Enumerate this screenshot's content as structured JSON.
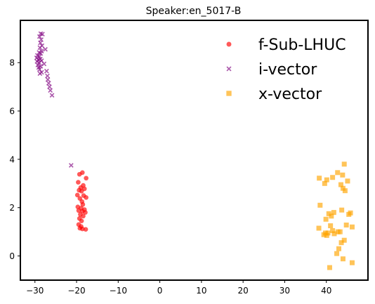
{
  "chart_data": {
    "type": "scatter",
    "title": "Speaker:en_5017-B",
    "xlabel": "",
    "ylabel": "",
    "xlim": [
      -33.5,
      50
    ],
    "ylim": [
      -1,
      9.75
    ],
    "xticks": [
      -30,
      -20,
      -10,
      0,
      10,
      20,
      30,
      40
    ],
    "yticks": [
      0,
      2,
      4,
      6,
      8
    ],
    "grid": false,
    "legend_position": "top-right",
    "series": [
      {
        "name": "f-Sub-LHUC",
        "marker": "circle",
        "color": "#ff0000",
        "points": [
          [
            -18.6,
            3.45
          ],
          [
            -19.3,
            3.38
          ],
          [
            -17.7,
            3.22
          ],
          [
            -19.6,
            3.05
          ],
          [
            -18.4,
            2.92
          ],
          [
            -19.0,
            2.83
          ],
          [
            -18.1,
            2.78
          ],
          [
            -19.4,
            2.72
          ],
          [
            -18.8,
            2.68
          ],
          [
            -19.8,
            2.52
          ],
          [
            -18.3,
            2.5
          ],
          [
            -17.7,
            2.42
          ],
          [
            -19.2,
            2.38
          ],
          [
            -18.7,
            2.25
          ],
          [
            -18.5,
            2.13
          ],
          [
            -19.7,
            2.03
          ],
          [
            -18.9,
            1.98
          ],
          [
            -18.1,
            1.92
          ],
          [
            -19.5,
            1.88
          ],
          [
            -18.6,
            1.85
          ],
          [
            -17.9,
            1.8
          ],
          [
            -19.1,
            1.72
          ],
          [
            -18.4,
            1.65
          ],
          [
            -19.3,
            1.55
          ],
          [
            -18.8,
            1.45
          ],
          [
            -19.5,
            1.3
          ],
          [
            -18.9,
            1.22
          ],
          [
            -19.2,
            1.15
          ],
          [
            -18.6,
            1.12
          ],
          [
            -17.8,
            1.1
          ]
        ]
      },
      {
        "name": "i-vector",
        "marker": "x",
        "color": "#800080",
        "points": [
          [
            -28.6,
            9.2
          ],
          [
            -28.2,
            9.18
          ],
          [
            -28.9,
            9.08
          ],
          [
            -28.5,
            8.95
          ],
          [
            -28.7,
            8.82
          ],
          [
            -28.3,
            8.7
          ],
          [
            -28.8,
            8.62
          ],
          [
            -27.5,
            8.55
          ],
          [
            -28.4,
            8.48
          ],
          [
            -29.0,
            8.42
          ],
          [
            -28.6,
            8.38
          ],
          [
            -29.4,
            8.3
          ],
          [
            -28.9,
            8.25
          ],
          [
            -29.6,
            8.2
          ],
          [
            -28.7,
            8.15
          ],
          [
            -29.2,
            8.12
          ],
          [
            -28.4,
            8.08
          ],
          [
            -29.5,
            8.05
          ],
          [
            -29.0,
            8.0
          ],
          [
            -27.8,
            7.95
          ],
          [
            -29.3,
            7.9
          ],
          [
            -28.6,
            7.85
          ],
          [
            -29.1,
            7.8
          ],
          [
            -28.9,
            7.72
          ],
          [
            -27.2,
            7.65
          ],
          [
            -28.4,
            7.6
          ],
          [
            -28.8,
            7.55
          ],
          [
            -27.0,
            7.45
          ],
          [
            -26.9,
            7.3
          ],
          [
            -26.7,
            7.15
          ],
          [
            -26.5,
            7.0
          ],
          [
            -26.3,
            6.85
          ],
          [
            -25.9,
            6.65
          ],
          [
            -21.3,
            3.75
          ]
        ]
      },
      {
        "name": "x-vector",
        "marker": "square",
        "color": "#ffa500",
        "points": [
          [
            44.3,
            3.8
          ],
          [
            42.7,
            3.45
          ],
          [
            41.5,
            3.25
          ],
          [
            43.9,
            3.35
          ],
          [
            38.3,
            3.22
          ],
          [
            40.1,
            3.15
          ],
          [
            45.1,
            3.1
          ],
          [
            39.6,
            3.0
          ],
          [
            43.5,
            2.95
          ],
          [
            44.0,
            2.8
          ],
          [
            44.5,
            2.7
          ],
          [
            38.5,
            2.1
          ],
          [
            43.7,
            1.9
          ],
          [
            41.8,
            1.8
          ],
          [
            40.6,
            1.75
          ],
          [
            45.8,
            1.78
          ],
          [
            45.4,
            1.72
          ],
          [
            41.2,
            1.65
          ],
          [
            39.9,
            1.52
          ],
          [
            44.8,
            1.28
          ],
          [
            41.0,
            1.25
          ],
          [
            46.2,
            1.2
          ],
          [
            38.2,
            1.15
          ],
          [
            41.5,
            1.05
          ],
          [
            42.8,
            1.0
          ],
          [
            43.3,
            1.0
          ],
          [
            39.8,
            0.95
          ],
          [
            40.4,
            0.95
          ],
          [
            41.9,
            0.92
          ],
          [
            39.4,
            0.88
          ],
          [
            40.1,
            0.85
          ],
          [
            44.3,
            0.65
          ],
          [
            43.6,
            0.55
          ],
          [
            43.0,
            0.3
          ],
          [
            42.5,
            0.1
          ],
          [
            44.0,
            -0.12
          ],
          [
            46.2,
            -0.28
          ],
          [
            40.8,
            -0.48
          ]
        ]
      }
    ]
  }
}
